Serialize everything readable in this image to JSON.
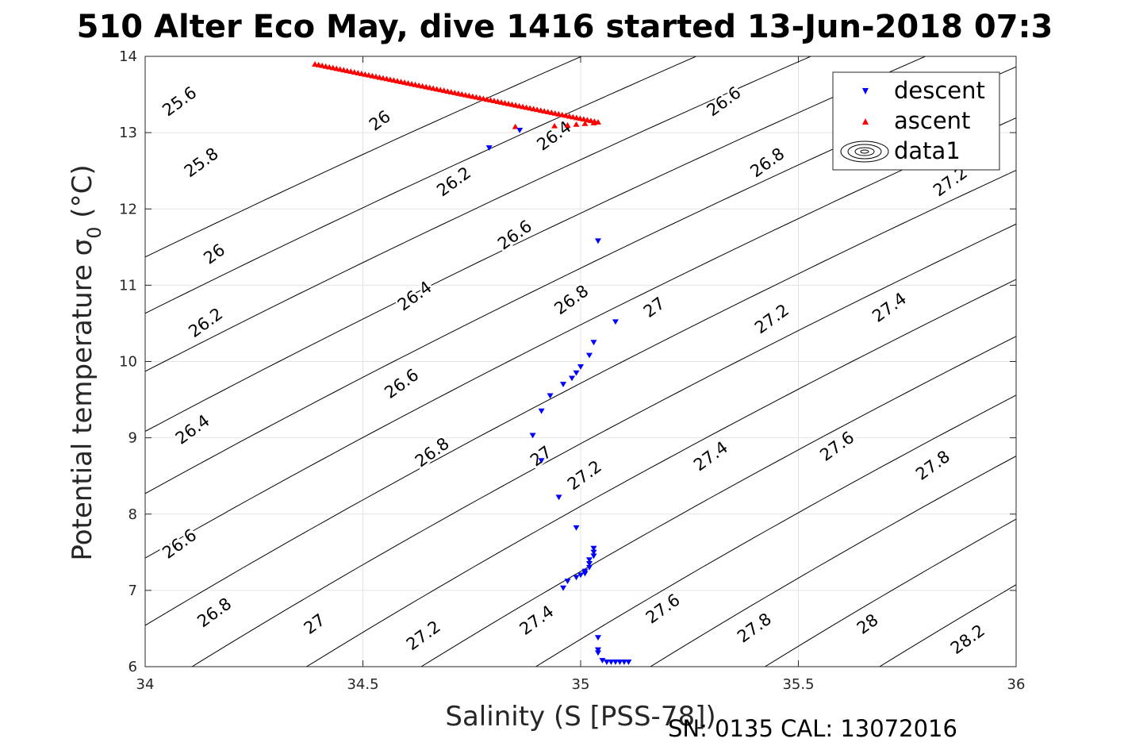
{
  "chart_data": {
    "type": "scatter",
    "title": "510 Alter Eco May, dive 1416 started 13-Jun-2018 07:3",
    "xlabel": "Salinity (S [PSS-78])",
    "ylabel_main": "Potential temperature σ",
    "ylabel_sub": "0",
    "ylabel_unit": "(°C)",
    "xlim": [
      34,
      36
    ],
    "ylim": [
      6,
      14
    ],
    "xticks": [
      "34",
      "34.5",
      "35",
      "35.5",
      "36"
    ],
    "yticks": [
      "6",
      "7",
      "8",
      "9",
      "10",
      "11",
      "12",
      "13",
      "14"
    ],
    "grid": true,
    "legend_position": "top-right",
    "footer": "SN: 0135  CAL: 13072016",
    "series": [
      {
        "name": "descent",
        "marker": "triangle-down",
        "color": "#0000ff",
        "points": [
          [
            34.79,
            12.8
          ],
          [
            34.86,
            13.03
          ],
          [
            35.04,
            11.58
          ],
          [
            35.08,
            10.52
          ],
          [
            35.03,
            10.25
          ],
          [
            35.02,
            10.08
          ],
          [
            35.0,
            9.93
          ],
          [
            34.99,
            9.85
          ],
          [
            34.98,
            9.78
          ],
          [
            34.96,
            9.7
          ],
          [
            34.93,
            9.55
          ],
          [
            34.91,
            9.35
          ],
          [
            34.89,
            9.03
          ],
          [
            34.91,
            8.7
          ],
          [
            34.95,
            8.22
          ],
          [
            34.99,
            7.82
          ],
          [
            35.03,
            7.55
          ],
          [
            35.03,
            7.5
          ],
          [
            35.03,
            7.45
          ],
          [
            35.02,
            7.4
          ],
          [
            35.02,
            7.35
          ],
          [
            35.02,
            7.3
          ],
          [
            35.01,
            7.25
          ],
          [
            35.01,
            7.22
          ],
          [
            35.0,
            7.2
          ],
          [
            34.99,
            7.17
          ],
          [
            34.97,
            7.12
          ],
          [
            34.96,
            7.03
          ],
          [
            35.04,
            6.38
          ],
          [
            35.04,
            6.22
          ],
          [
            35.04,
            6.18
          ],
          [
            35.05,
            6.08
          ],
          [
            35.06,
            6.06
          ],
          [
            35.07,
            6.06
          ],
          [
            35.08,
            6.06
          ],
          [
            35.09,
            6.06
          ],
          [
            35.1,
            6.06
          ],
          [
            35.11,
            6.06
          ]
        ]
      },
      {
        "name": "ascent",
        "marker": "triangle-up",
        "color": "#ff0000",
        "points": [
          [
            34.85,
            13.08
          ],
          [
            34.94,
            13.09
          ],
          [
            34.97,
            13.1
          ],
          [
            34.99,
            13.11
          ],
          [
            35.01,
            13.12
          ],
          [
            35.03,
            13.13
          ]
        ],
        "trail": {
          "from": [
            34.39,
            13.9
          ],
          "to": [
            35.04,
            13.14
          ],
          "count": 80
        }
      },
      {
        "name": "data1",
        "marker": "contour",
        "color": "#000000"
      }
    ],
    "contour_lines": [
      {
        "value": 25.6,
        "label": "25.6"
      },
      {
        "value": 25.8,
        "label": "25.8"
      },
      {
        "value": 26.0,
        "label": "26"
      },
      {
        "value": 26.2,
        "label": "26.2"
      },
      {
        "value": 26.4,
        "label": "26.4"
      },
      {
        "value": 26.6,
        "label": "26.6"
      },
      {
        "value": 26.8,
        "label": "26.8"
      },
      {
        "value": 27.0,
        "label": "27"
      },
      {
        "value": 27.2,
        "label": "27.2"
      },
      {
        "value": 27.4,
        "label": "27.4"
      },
      {
        "value": 27.6,
        "label": "27.6"
      },
      {
        "value": 27.8,
        "label": "27.8"
      },
      {
        "value": 28.0,
        "label": "28"
      },
      {
        "value": 28.2,
        "label": "28.2"
      }
    ],
    "contour_label_positions": [
      {
        "label": "25.6",
        "x": 34.08,
        "y": 13.4
      },
      {
        "label": "25.8",
        "x": 34.13,
        "y": 12.6
      },
      {
        "label": "26",
        "x": 34.16,
        "y": 11.4
      },
      {
        "label": "26.2",
        "x": 34.14,
        "y": 10.5
      },
      {
        "label": "26.4",
        "x": 34.11,
        "y": 9.1
      },
      {
        "label": "26.6",
        "x": 34.08,
        "y": 7.6
      },
      {
        "label": "26.8",
        "x": 34.16,
        "y": 6.7
      },
      {
        "label": "27",
        "x": 34.39,
        "y": 6.55
      },
      {
        "label": "27.2",
        "x": 34.64,
        "y": 6.4
      },
      {
        "label": "27.4",
        "x": 34.9,
        "y": 6.6
      },
      {
        "label": "27.6",
        "x": 35.19,
        "y": 6.75
      },
      {
        "label": "27.8",
        "x": 35.4,
        "y": 6.5
      },
      {
        "label": "28",
        "x": 35.66,
        "y": 6.55
      },
      {
        "label": "28.2",
        "x": 35.89,
        "y": 6.35
      },
      {
        "label": "26",
        "x": 34.54,
        "y": 13.15
      },
      {
        "label": "26.2",
        "x": 34.71,
        "y": 12.35
      },
      {
        "label": "26.4",
        "x": 34.94,
        "y": 12.95
      },
      {
        "label": "26.4",
        "x": 34.62,
        "y": 10.85
      },
      {
        "label": "26.6",
        "x": 34.85,
        "y": 11.65
      },
      {
        "label": "26.6",
        "x": 35.33,
        "y": 13.4
      },
      {
        "label": "26.8",
        "x": 34.98,
        "y": 10.8
      },
      {
        "label": "26.8",
        "x": 35.43,
        "y": 12.6
      },
      {
        "label": "26.6",
        "x": 34.59,
        "y": 9.7
      },
      {
        "label": "26.8",
        "x": 34.66,
        "y": 8.8
      },
      {
        "label": "27",
        "x": 35.17,
        "y": 10.7
      },
      {
        "label": "27",
        "x": 34.91,
        "y": 8.75
      },
      {
        "label": "27.2",
        "x": 35.44,
        "y": 10.55
      },
      {
        "label": "27.2",
        "x": 35.01,
        "y": 8.5
      },
      {
        "label": "27.2",
        "x": 35.85,
        "y": 12.35
      },
      {
        "label": "27.4",
        "x": 35.71,
        "y": 10.7
      },
      {
        "label": "27.4",
        "x": 35.3,
        "y": 8.75
      },
      {
        "label": "27.6",
        "x": 35.59,
        "y": 8.88
      },
      {
        "label": "27.8",
        "x": 35.81,
        "y": 8.63
      }
    ],
    "legend": [
      {
        "label": "descent"
      },
      {
        "label": "ascent"
      },
      {
        "label": "data1"
      }
    ]
  }
}
